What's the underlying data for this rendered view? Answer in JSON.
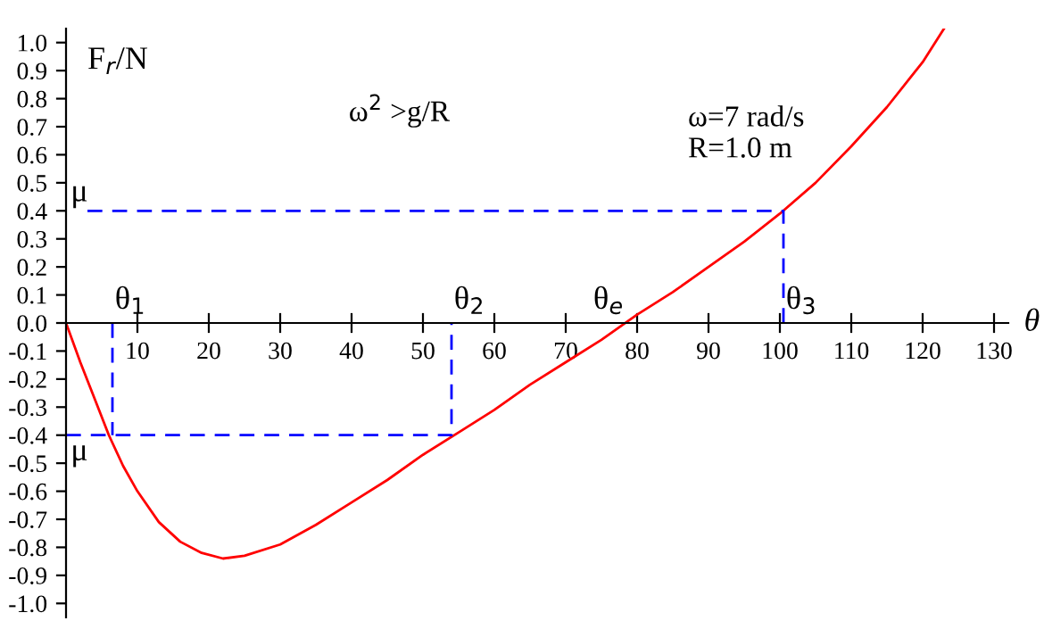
{
  "chart_data": {
    "type": "line",
    "xlabel": "θ",
    "ylabel": "F$_{r}$/N",
    "x": [
      0,
      2,
      4,
      6,
      8,
      10,
      13,
      16,
      19,
      22,
      25,
      30,
      35,
      40,
      45,
      50,
      55,
      60,
      65,
      70,
      75,
      80,
      85,
      90,
      95,
      100,
      105,
      110,
      115,
      120,
      123
    ],
    "series": [
      {
        "color": "#ff0000",
        "line_style": "solid",
        "values": [
          0,
          -0.14,
          -0.27,
          -0.4,
          -0.51,
          -0.6,
          -0.71,
          -0.78,
          -0.82,
          -0.84,
          -0.83,
          -0.79,
          -0.72,
          -0.64,
          -0.56,
          -0.47,
          -0.39,
          -0.31,
          -0.22,
          -0.14,
          -0.06,
          0.03,
          0.11,
          0.2,
          0.29,
          0.39,
          0.5,
          0.63,
          0.77,
          0.93,
          1.05
        ]
      },
      {
        "color": "#0000ff",
        "line_style": "dashed",
        "x": [
          3,
          100.5,
          100.5
        ],
        "values": [
          0.4,
          0.4,
          0
        ]
      },
      {
        "color": "#0000ff",
        "line_style": "dashed",
        "x": [
          0,
          54,
          54
        ],
        "values": [
          -0.4,
          -0.4,
          0
        ]
      },
      {
        "color": "#0000ff",
        "line_style": "dashed",
        "x": [
          6.5,
          6.5
        ],
        "values": [
          0,
          -0.4
        ]
      }
    ],
    "xlim": [
      0,
      132
    ],
    "ylim": [
      -1.05,
      1.05
    ],
    "xticks": [
      10,
      20,
      30,
      40,
      50,
      60,
      70,
      80,
      90,
      100,
      110,
      120,
      130
    ],
    "yticks": [
      {
        "value": -1,
        "label": "-1.0"
      },
      -0.9,
      -0.8,
      -0.7,
      -0.6,
      -0.5,
      -0.4,
      -0.3,
      -0.2,
      -0.1,
      {
        "value": 0,
        "label": "0.0"
      },
      0.1,
      0.2,
      0.3,
      0.4,
      0.5,
      0.6,
      0.7,
      0.8,
      0.9,
      {
        "value": 1,
        "label": "1.0"
      }
    ],
    "grid": false,
    "marker": "none",
    "annotations": [
      "μ",
      "μ",
      {
        "text": "θ$_{1}$",
        "x": 6.5,
        "y": 0
      },
      {
        "text": "θ$_{2}$",
        "x": 54,
        "y": 0
      },
      {
        "text": "θ$_{e}$",
        "x": 78.5,
        "y": 0
      },
      {
        "text": "θ$_{3}$",
        "x": 100.5,
        "y": 0
      },
      "ω$^{2}$ >g/R",
      "ω=7 rad/s\nR=1.0 m"
    ]
  }
}
